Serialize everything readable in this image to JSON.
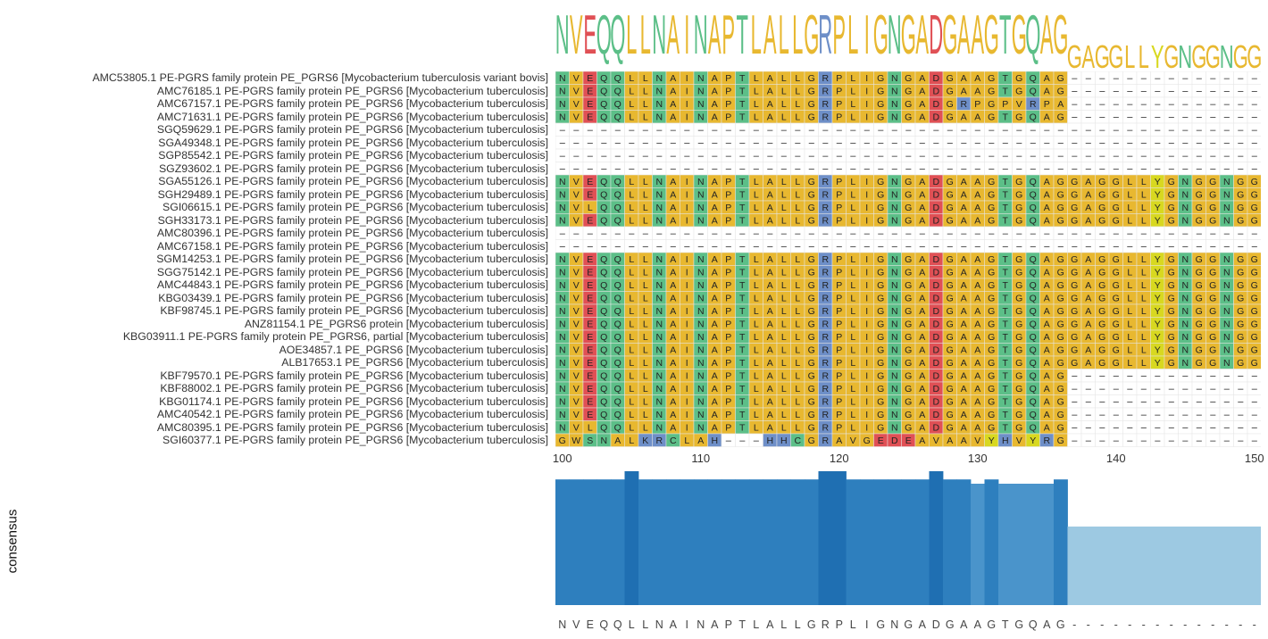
{
  "logo": {
    "letters": [
      "N",
      "V",
      "E",
      "Q",
      "Q",
      "L",
      "L",
      "N",
      "A",
      "I",
      "N",
      "A",
      "P",
      "T",
      "L",
      "A",
      "L",
      "L",
      "G",
      "R",
      "P",
      "L",
      "I",
      "G",
      "N",
      "G",
      "A",
      "D",
      "G",
      "A",
      "A",
      "G",
      "T",
      "G",
      "Q",
      "A",
      "G",
      "G",
      "A",
      "G",
      "G",
      "L",
      "L",
      "Y",
      "G",
      "N",
      "G",
      "G",
      "N",
      "G",
      "G"
    ],
    "colors": {
      "hydrophobic": "#E8B830",
      "polar": "#5CBF88",
      "acidic": "#E05055",
      "basic": "#6E8FC8",
      "aromatic": "#D8D820",
      "neutral": "#DDDDDD"
    }
  },
  "sequences": [
    {
      "label": "AMC53805.1 PE-PGRS family protein PE_PGRS6 [Mycobacterium tuberculosis variant bovis]",
      "seq": "NVEQQLLNAINAPTLALLGRPLIGNGADGAAGTGQAG--------------"
    },
    {
      "label": "AMC76185.1 PE-PGRS family protein PE_PGRS6 [Mycobacterium tuberculosis]",
      "seq": "NVEQQLLNAINAPTLALLGRPLIGNGADGAAGTGQAG--------------"
    },
    {
      "label": "AMC67157.1 PE-PGRS family protein PE_PGRS6 [Mycobacterium tuberculosis]",
      "seq": "NVEQQLLNAINAPTLALLGRPLIGNGADGRPGPVRPA--------------"
    },
    {
      "label": "AMC71631.1 PE-PGRS family protein PE_PGRS6 [Mycobacterium tuberculosis]",
      "seq": "NVEQQLLNAINAPTLALLGRPLIGNGADGAAGTGQAG--------------"
    },
    {
      "label": "SGQ59629.1 PE-PGRS family protein PE_PGRS6 [Mycobacterium tuberculosis]",
      "seq": "---------------------------------------------------"
    },
    {
      "label": "SGA49348.1 PE-PGRS family protein PE_PGRS6 [Mycobacterium tuberculosis]",
      "seq": "---------------------------------------------------"
    },
    {
      "label": "SGP85542.1 PE-PGRS family protein PE_PGRS6 [Mycobacterium tuberculosis]",
      "seq": "---------------------------------------------------"
    },
    {
      "label": "SGZ93602.1 PE-PGRS family protein PE_PGRS6 [Mycobacterium tuberculosis]",
      "seq": "---------------------------------------------------"
    },
    {
      "label": "SGA55126.1 PE-PGRS family protein PE_PGRS6 [Mycobacterium tuberculosis]",
      "seq": "NVEQQLLNAINAPTLALLGRPLIGNGADGAAGTGQAGGAGGLLYGNGGNGG"
    },
    {
      "label": "SGH29489.1 PE-PGRS family protein PE_PGRS6 [Mycobacterium tuberculosis]",
      "seq": "NVEQQLLNAINAPTLALLGRPLIGNGADGAAGTGQAGGAGGLLYGNGGNGG"
    },
    {
      "label": "SGI06615.1 PE-PGRS family protein PE_PGRS6 [Mycobacterium tuberculosis]",
      "seq": "NVLQQLLNAINAPTLALLGRPLIGNGADGAAGTGQAGGAGGLLYGNGGNGG"
    },
    {
      "label": "SGH33173.1 PE-PGRS family protein PE_PGRS6 [Mycobacterium tuberculosis]",
      "seq": "NVEQQLLNAINAPTLALLGRPLIGNGADGAAGTGQAGGAGGLLYGNGGNGG"
    },
    {
      "label": "AMC80396.1 PE-PGRS family protein PE_PGRS6 [Mycobacterium tuberculosis]",
      "seq": "---------------------------------------------------"
    },
    {
      "label": "AMC67158.1 PE-PGRS family protein PE_PGRS6 [Mycobacterium tuberculosis]",
      "seq": "---------------------------------------------------"
    },
    {
      "label": "SGM14253.1 PE-PGRS family protein PE_PGRS6 [Mycobacterium tuberculosis]",
      "seq": "NVEQQLLNAINAPTLALLGRPLIGNGADGAAGTGQAGGAGGLLYGNGGNGG"
    },
    {
      "label": "SGG75142.1 PE-PGRS family protein PE_PGRS6 [Mycobacterium tuberculosis]",
      "seq": "NVEQQLLNAINAPTLALLGRPLIGNGADGAAGTGQAGGAGGLLYGNGGNGG"
    },
    {
      "label": "AMC44843.1 PE-PGRS family protein PE_PGRS6 [Mycobacterium tuberculosis]",
      "seq": "NVEQQLLNAINAPTLALLGRPLIGNGADGAAGTGQAGGAGGLLYGNGGNGG"
    },
    {
      "label": "KBG03439.1 PE-PGRS family protein PE_PGRS6 [Mycobacterium tuberculosis]",
      "seq": "NVEQQLLNAINAPTLALLGRPLIGNGADGAAGTGQAGGAGGLLYGNGGNGG"
    },
    {
      "label": "KBF98745.1 PE-PGRS family protein PE_PGRS6 [Mycobacterium tuberculosis]",
      "seq": "NVEQQLLNAINAPTLALLGRPLIGNGADGAAGTGQAGGAGGLLYGNGGNGG"
    },
    {
      "label": "ANZ81154.1 PE_PGRS6 protein [Mycobacterium tuberculosis]",
      "seq": "NVEQQLLNAINAPTLALLGRPLIGNGADGAAGTGQAGGAGGLLYGNGGNGG"
    },
    {
      "label": "KBG03911.1 PE-PGRS family protein PE_PGRS6, partial [Mycobacterium tuberculosis]",
      "seq": "NVEQQLLNAINAPTLALLGRPLIGNGADGAAGTGQAGGAGGLLYGNGGNGG"
    },
    {
      "label": "AOE34857.1 PE_PGRS6 [Mycobacterium tuberculosis]",
      "seq": "NVEQQLLNAINAPTLALLGRPLIGNGADGAAGTGQAGGAGGLLYGNGGNGG"
    },
    {
      "label": "ALB17653.1 PE_PGRS6 [Mycobacterium tuberculosis]",
      "seq": "NVEQQLLNAINAPTLALLGRPLIGNGADGAAGTGQAGGAGGLLYGNGGNGG"
    },
    {
      "label": "KBF79570.1 PE-PGRS family protein PE_PGRS6 [Mycobacterium tuberculosis]",
      "seq": "NVEQQLLNAINAPTLALLGRPLIGNGADGAAGTGQAG--------------"
    },
    {
      "label": "KBF88002.1 PE-PGRS family protein PE_PGRS6 [Mycobacterium tuberculosis]",
      "seq": "NVEQQLLNAINAPTLALLGRPLIGNGADGAAGTGQAG--------------"
    },
    {
      "label": "KBG01174.1 PE-PGRS family protein PE_PGRS6 [Mycobacterium tuberculosis]",
      "seq": "NVEQQLLNAINAPTLALLGRPLIGNGADGAAGTGQAG--------------"
    },
    {
      "label": "AMC40542.1 PE-PGRS family protein PE_PGRS6 [Mycobacterium tuberculosis]",
      "seq": "NVEQQLLNAINAPTLALLGRPLIGNGADGAAGTGQAG--------------"
    },
    {
      "label": "AMC80395.1 PE-PGRS family protein PE_PGRS6 [Mycobacterium tuberculosis]",
      "seq": "NVLQQLLNAINAPTLALLGRPLIGNGADGAAGTGQAG--------------"
    },
    {
      "label": "SGI60377.1 PE-PGRS family protein PE_PGRS6 [Mycobacterium tuberculosis]",
      "seq": "GWSNALKRCLAH---HHCGRAVGEDEAVAAVYHVYRG--------------"
    }
  ],
  "axis": {
    "start_position": 100,
    "ticks": [
      "100",
      "110",
      "120",
      "130",
      "140",
      "150"
    ]
  },
  "consensus": {
    "ylabel": "consensus",
    "conservation": [
      0.88,
      0.88,
      0.88,
      0.88,
      0.88,
      0.94,
      0.88,
      0.88,
      0.88,
      0.88,
      0.88,
      0.88,
      0.88,
      0.88,
      0.88,
      0.88,
      0.88,
      0.88,
      0.88,
      0.94,
      0.94,
      0.88,
      0.88,
      0.88,
      0.88,
      0.88,
      0.88,
      0.94,
      0.88,
      0.88,
      0.85,
      0.88,
      0.85,
      0.85,
      0.85,
      0.85,
      0.88,
      0.55,
      0.55,
      0.55,
      0.55,
      0.55,
      0.55,
      0.55,
      0.55,
      0.55,
      0.55,
      0.55,
      0.55,
      0.55,
      0.55
    ],
    "sequence": "NVEQQLLNAINAPTLALLGRPLIGNGADGAAGTGQAG--------------",
    "colors": {
      "high": "#1F6FB2",
      "mid": "#2E7FBE",
      "low": "#4A94CB",
      "gap": "#9DC9E2"
    }
  }
}
